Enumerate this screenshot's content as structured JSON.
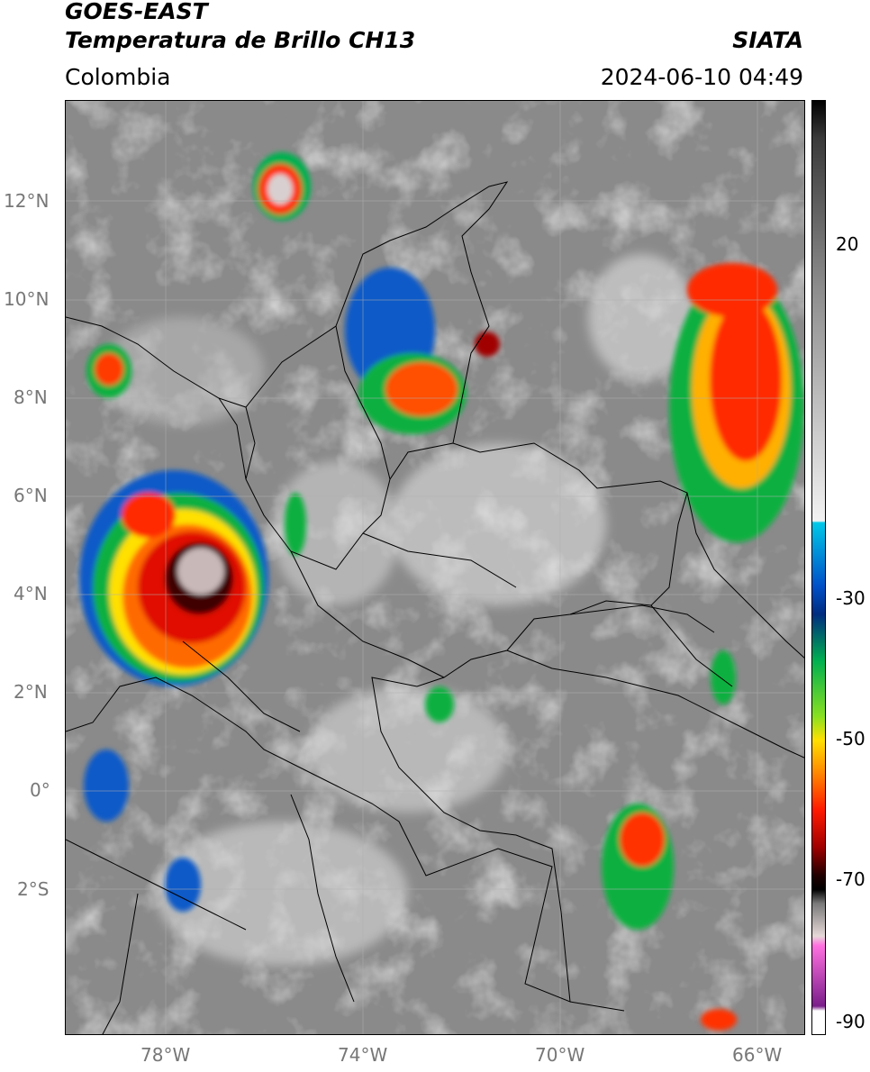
{
  "header": {
    "title_line1": "GOES-EAST",
    "title_line2": "Temperatura de Brillo CH13",
    "brand": "SIATA",
    "region": "Colombia",
    "timestamp": "2024-06-10 04:49"
  },
  "map": {
    "lat_labels": [
      "12°N",
      "10°N",
      "8°N",
      "6°N",
      "4°N",
      "2°N",
      "0°",
      "2°S"
    ],
    "lon_labels": [
      "78°W",
      "74°W",
      "70°W",
      "66°W"
    ],
    "background_gray": "#8a8a8a"
  },
  "colorbar": {
    "tick_labels": [
      "20",
      "-30",
      "-50",
      "-70",
      "-90"
    ],
    "stops": [
      {
        "t": 0.0,
        "c": "#000000"
      },
      {
        "t": 0.04,
        "c": "#3a3a3a"
      },
      {
        "t": 0.2,
        "c": "#8c8c8c"
      },
      {
        "t": 0.45,
        "c": "#f2f2f2"
      },
      {
        "t": 0.452,
        "c": "#00c8e8"
      },
      {
        "t": 0.52,
        "c": "#0050c8"
      },
      {
        "t": 0.55,
        "c": "#002c80"
      },
      {
        "t": 0.6,
        "c": "#00b050"
      },
      {
        "t": 0.66,
        "c": "#8ae020"
      },
      {
        "t": 0.685,
        "c": "#ffe000"
      },
      {
        "t": 0.72,
        "c": "#ff8800"
      },
      {
        "t": 0.76,
        "c": "#ff1a00"
      },
      {
        "t": 0.8,
        "c": "#a00000"
      },
      {
        "t": 0.83,
        "c": "#200000"
      },
      {
        "t": 0.845,
        "c": "#000000"
      },
      {
        "t": 0.86,
        "c": "#7a7a7a"
      },
      {
        "t": 0.895,
        "c": "#e6d8d8"
      },
      {
        "t": 0.905,
        "c": "#ff70e0"
      },
      {
        "t": 0.97,
        "c": "#7a1e8a"
      },
      {
        "t": 0.975,
        "c": "#ffffff"
      },
      {
        "t": 1.0,
        "c": "#ffffff"
      }
    ]
  }
}
